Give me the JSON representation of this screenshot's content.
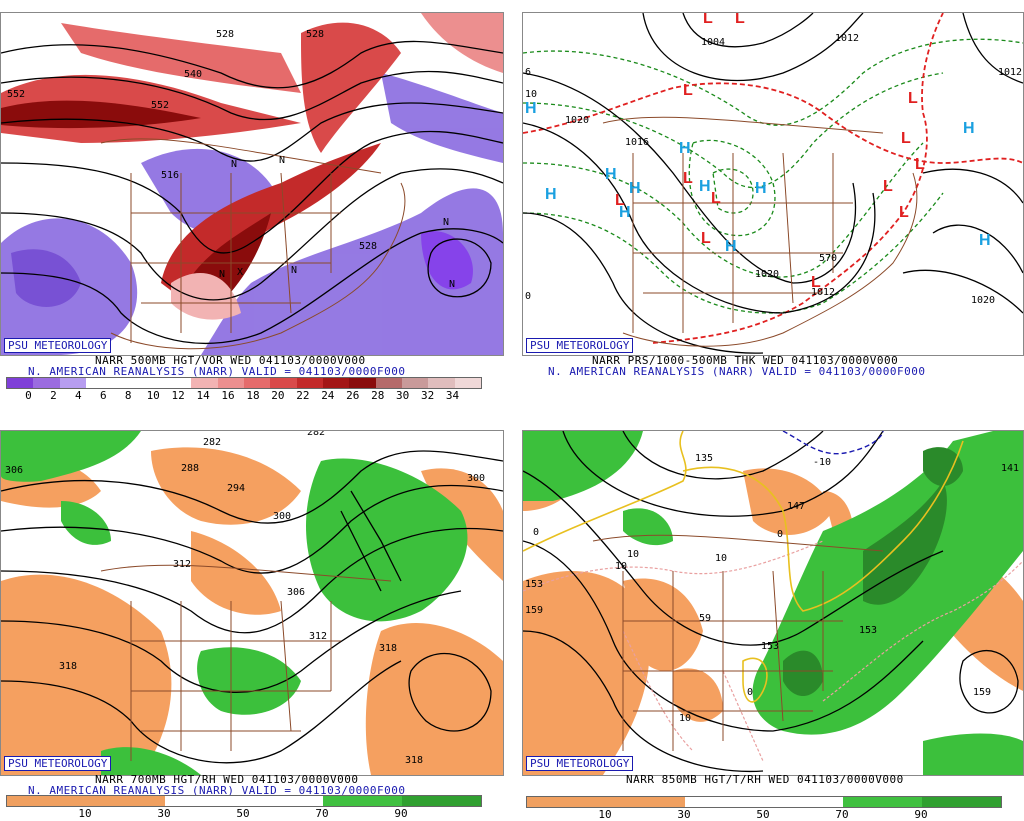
{
  "watermark": "PSU METEOROLOGY",
  "panels": {
    "vorticity": {
      "title_line": "NARR 500MB HGT/VOR WED 041103/0000V000",
      "valid_line": "N. AMERICAN REANALYSIS (NARR) VALID = 041103/0000F000",
      "scale_ticks": [
        "0",
        "2",
        "4",
        "6",
        "8",
        "10",
        "12",
        "14",
        "16",
        "18",
        "20",
        "22",
        "24",
        "26",
        "28",
        "30",
        "32",
        "34"
      ],
      "contour_labels": [
        "528",
        "528",
        "540",
        "552",
        "516",
        "528",
        "552"
      ],
      "markers": [
        "N",
        "N",
        "N",
        "N",
        "N",
        "N",
        "X"
      ]
    },
    "pressure": {
      "title_line": "NARR PRS/1000-500MB THK WED 041103/0000V000",
      "valid_line": "N. AMERICAN REANALYSIS (NARR) VALID = 041103/0000F000",
      "contour_labels": [
        "1012",
        "1004",
        "1016",
        "1020",
        "1012",
        "1020",
        "1020",
        "1012",
        "570",
        "6",
        "10",
        "0"
      ],
      "highs": [
        "H",
        "H",
        "H",
        "H",
        "H",
        "H",
        "H",
        "H",
        "H",
        "H",
        "H"
      ],
      "lows": [
        "L",
        "L",
        "L",
        "L",
        "L",
        "L",
        "L",
        "L",
        "L",
        "L",
        "L",
        "L",
        "L"
      ]
    },
    "rh700": {
      "title_line": "NARR 700MB HGT/RH WED 041103/0000V000",
      "valid_line": "N. AMERICAN REANALYSIS (NARR) VALID = 041103/0000F000",
      "scale_ticks": [
        "10",
        "30",
        "50",
        "70",
        "90"
      ],
      "contour_labels": [
        "282",
        "282",
        "306",
        "288",
        "294",
        "300",
        "312",
        "306",
        "318",
        "312",
        "318",
        "300",
        "318"
      ]
    },
    "temp850": {
      "title_line": "NARR 850MB HGT/T/RH WED 041103/0000V000",
      "scale_ticks": [
        "10",
        "30",
        "50",
        "70",
        "90"
      ],
      "contour_labels": [
        "135",
        "147",
        "-10",
        "141",
        "10",
        "10",
        "10",
        "59",
        "153",
        "153",
        "159",
        "0",
        "0",
        "0",
        "10",
        "153",
        "159"
      ]
    }
  },
  "colors": {
    "vor_scale": [
      "#7f3fd8",
      "#9b6ce0",
      "#b79df0",
      "#ffffff",
      "#ffffff",
      "#ffffff",
      "#ffffff",
      "#f2b3b3",
      "#ec8f8f",
      "#e56b6b",
      "#d94a4a",
      "#c32a2a",
      "#a31616",
      "#8a0c0c",
      "#b56a6a",
      "#c99a9a",
      "#e0bdbd",
      "#f0d8d8"
    ],
    "rh_scale": [
      "#f0a060",
      "#f0a060",
      "#ffffff",
      "#ffffff",
      "#40c040",
      "#30a030"
    ],
    "orange": "#f5a060",
    "green": "#3cc03c",
    "dark_green": "#2a8a2a",
    "purple": "#8a6be0",
    "red_vor": "#b01818",
    "boundary_brown": "#8b4a2a",
    "text_blue": "#1a1ab0",
    "high_blue": "#1aa0e0",
    "low_red": "#e02020"
  }
}
